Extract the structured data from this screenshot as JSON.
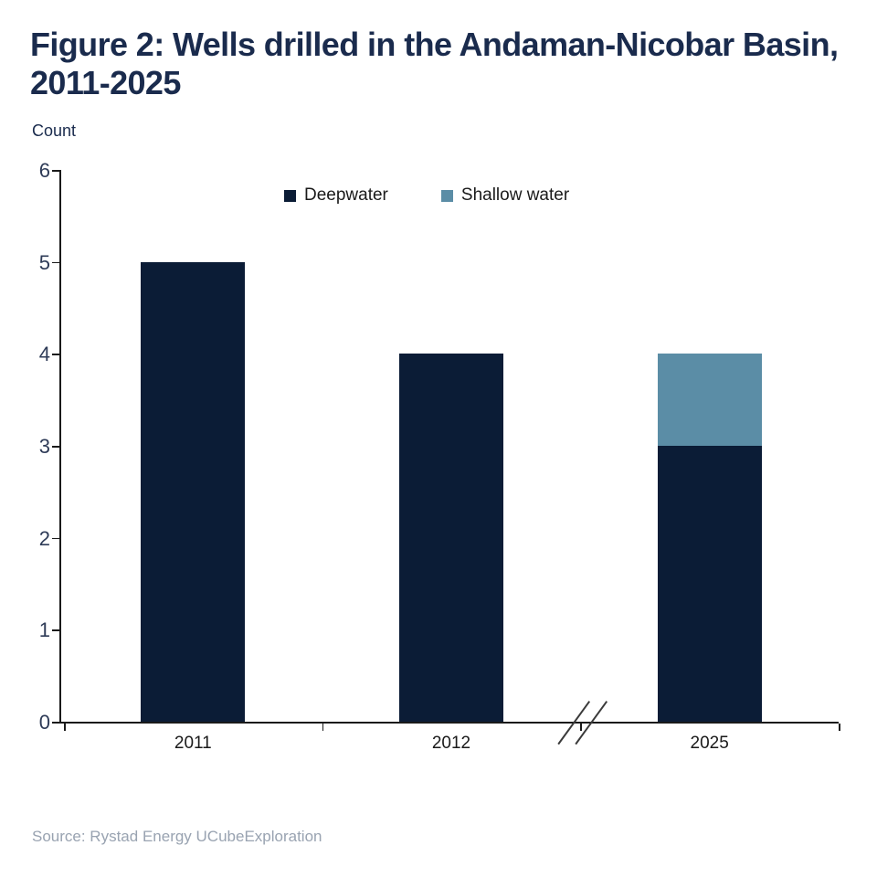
{
  "page": {
    "title": "Figure 2: Wells drilled in the Andaman-Nicobar Basin, 2011-2025",
    "source": "Source: Rystad Energy UCubeExploration"
  },
  "chart_data": {
    "type": "bar",
    "stacked": true,
    "title": "Figure 2: Wells drilled in the Andaman-Nicobar Basin, 2011-2025",
    "ylabel": "Count",
    "xlabel": "",
    "categories": [
      "2011",
      "2012",
      "2025"
    ],
    "series": [
      {
        "name": "Deepwater",
        "color": "#0b1c36",
        "values": [
          5,
          4,
          3
        ]
      },
      {
        "name": "Shallow water",
        "color": "#5b8da6",
        "values": [
          0,
          0,
          1
        ]
      }
    ],
    "ylim": [
      0,
      6
    ],
    "yticks": [
      0,
      1,
      2,
      3,
      4,
      5,
      6
    ],
    "grid": false,
    "legend_position": "top-center",
    "x_axis_break": {
      "between": [
        "2012",
        "2025"
      ]
    },
    "source": "Source: Rystad Energy UCubeExploration"
  },
  "colors": {
    "title": "#1a2b4d",
    "deepwater": "#0b1c36",
    "shallow_water": "#5b8da6",
    "axis": "#1a1a1a",
    "y_tick_label": "#2e3b57",
    "x_tick_label": "#1a1a1a",
    "source": "#99a3b1",
    "legend_text": "#1a1a1a"
  }
}
